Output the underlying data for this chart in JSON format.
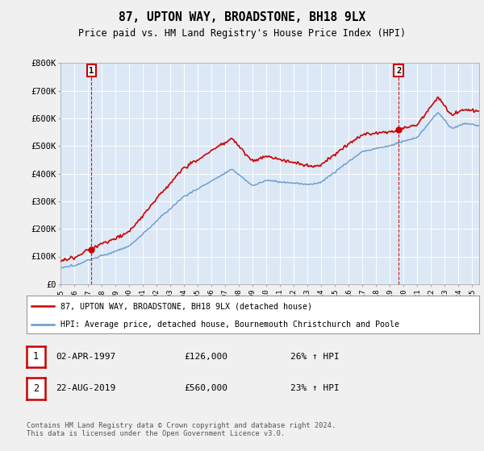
{
  "title": "87, UPTON WAY, BROADSTONE, BH18 9LX",
  "subtitle": "Price paid vs. HM Land Registry's House Price Index (HPI)",
  "ylim": [
    0,
    800000
  ],
  "yticks": [
    0,
    100000,
    200000,
    300000,
    400000,
    500000,
    600000,
    700000,
    800000
  ],
  "ytick_labels": [
    "£0",
    "£100K",
    "£200K",
    "£300K",
    "£400K",
    "£500K",
    "£600K",
    "£700K",
    "£800K"
  ],
  "sale1_date": "02-APR-1997",
  "sale1_price": 126000,
  "sale1_label": "26% ↑ HPI",
  "sale1_year": 1997.25,
  "sale2_date": "22-AUG-2019",
  "sale2_price": 560000,
  "sale2_label": "23% ↑ HPI",
  "sale2_year": 2019.63,
  "legend_line1": "87, UPTON WAY, BROADSTONE, BH18 9LX (detached house)",
  "legend_line2": "HPI: Average price, detached house, Bournemouth Christchurch and Poole",
  "footer": "Contains HM Land Registry data © Crown copyright and database right 2024.\nThis data is licensed under the Open Government Licence v3.0.",
  "sale_line_color": "#cc0000",
  "hpi_line_color": "#6699cc",
  "background_color": "#f0f0f0",
  "plot_bg_color": "#dce8f5",
  "grid_color": "#ffffff",
  "marker_box_color": "#cc0000",
  "xlim_start": 1995,
  "xlim_end": 2025.5
}
